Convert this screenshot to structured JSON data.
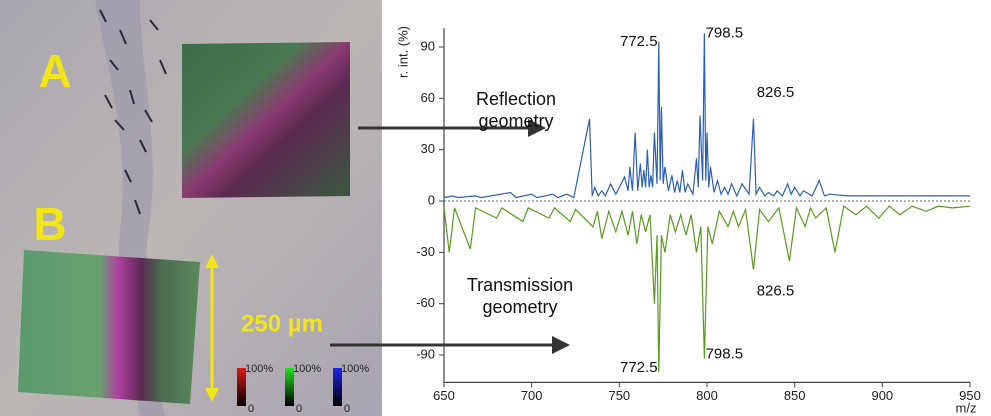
{
  "panel_labels": [
    "A",
    "B"
  ],
  "scale_bar": "250 µm",
  "colorbars": [
    {
      "color": "#e01818",
      "max": "100%",
      "min": "0"
    },
    {
      "color": "#20e020",
      "max": "100%",
      "min": "0"
    },
    {
      "color": "#2020e8",
      "max": "100%",
      "min": "0"
    }
  ],
  "chart_data": {
    "type": "line",
    "x_label": "m/z",
    "y_label": "r. int. (%)",
    "xlim": [
      650,
      950
    ],
    "ylim": [
      -106,
      101
    ],
    "xticks": [
      650,
      700,
      750,
      800,
      850,
      900,
      950
    ],
    "yticks": [
      -90,
      -60,
      -30,
      0,
      30,
      60,
      90
    ],
    "zero_line": true,
    "series": [
      {
        "name": "Reflection geometry",
        "color": "#2d5fb8",
        "x": [
          650,
          655,
          658,
          668,
          671,
          688,
          691,
          700,
          703,
          712,
          715,
          720,
          724,
          733,
          734.5,
          736,
          738,
          740,
          742,
          745,
          748,
          753,
          755,
          756,
          757.5,
          759,
          760.5,
          762,
          763,
          764,
          765,
          766,
          767,
          768,
          769,
          770,
          771.5,
          772.5,
          773.3,
          774,
          775,
          776,
          778,
          780,
          781.5,
          783,
          784.5,
          786,
          787.5,
          789,
          792,
          794,
          795,
          796,
          797.5,
          798.5,
          799.3,
          800,
          801,
          802,
          804,
          806,
          808,
          810,
          812,
          814,
          817,
          820,
          824,
          826.5,
          828,
          830,
          833,
          835,
          838,
          840,
          843,
          846,
          848,
          850,
          853,
          855,
          860,
          864,
          867,
          870,
          880,
          890,
          900,
          920,
          940,
          950
        ],
        "values": [
          2,
          3,
          2,
          3,
          2,
          5,
          2,
          4,
          2,
          4,
          2,
          4,
          2,
          48,
          3,
          8,
          3,
          6,
          3,
          10,
          4,
          14,
          6,
          20,
          6,
          40,
          6,
          22,
          8,
          18,
          8,
          30,
          8,
          15,
          8,
          40,
          10,
          93,
          12,
          55,
          10,
          20,
          6,
          15,
          5,
          12,
          5,
          18,
          5,
          10,
          4,
          25,
          8,
          50,
          12,
          98,
          12,
          40,
          8,
          20,
          5,
          12,
          4,
          8,
          4,
          10,
          3,
          10,
          4,
          48,
          4,
          8,
          3,
          5,
          3,
          6,
          3,
          10,
          4,
          8,
          3,
          6,
          3,
          12,
          3,
          4,
          3,
          3,
          3,
          3,
          3,
          3
        ],
        "peak_labels": [
          772.5,
          798.5,
          826.5
        ]
      },
      {
        "name": "Transmission geometry",
        "color": "#5a9a1e",
        "x": [
          650,
          653,
          656,
          665,
          668,
          680,
          683,
          695,
          698,
          710,
          713,
          722,
          725,
          735,
          737.5,
          740,
          744,
          748,
          751.5,
          755,
          757.5,
          760,
          762.5,
          765,
          767.5,
          770,
          771.5,
          772.5,
          774,
          776,
          779,
          782,
          785,
          788,
          791,
          794,
          796.5,
          798.5,
          800.5,
          803,
          807,
          812,
          815,
          818,
          822,
          826.5,
          830,
          835,
          841,
          847,
          851,
          856,
          859,
          862,
          868,
          873,
          878,
          885,
          891,
          898,
          904,
          910,
          917,
          925,
          932,
          940,
          950
        ],
        "values": [
          -4,
          -30,
          -4,
          -28,
          -4,
          -10,
          -4,
          -12,
          -4,
          -10,
          -4,
          -12,
          -5,
          -15,
          -6,
          -22,
          -6,
          -18,
          -6,
          -20,
          -6,
          -25,
          -8,
          -18,
          -8,
          -60,
          -20,
          -100,
          -20,
          -30,
          -8,
          -18,
          -8,
          -20,
          -8,
          -30,
          -15,
          -92,
          -15,
          -25,
          -6,
          -15,
          -6,
          -15,
          -5,
          -40,
          -5,
          -12,
          -4,
          -35,
          -4,
          -15,
          -4,
          -10,
          -4,
          -30,
          -3,
          -8,
          -3,
          -10,
          -3,
          -8,
          -3,
          -6,
          -3,
          -4,
          -3
        ],
        "peak_labels": [
          772.5,
          798.5,
          826.5
        ]
      }
    ]
  }
}
